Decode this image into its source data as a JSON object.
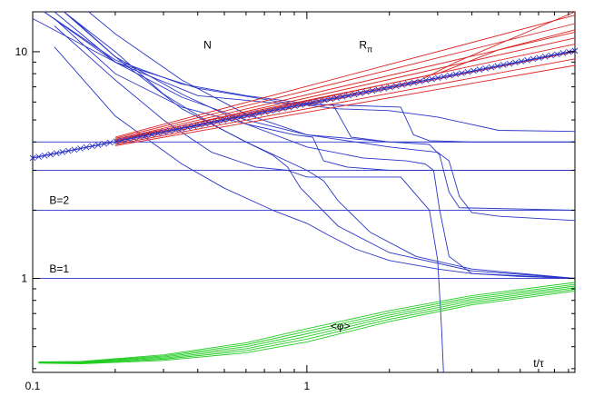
{
  "chart_data": {
    "type": "line",
    "xscale": "log",
    "yscale": "log",
    "xlim": [
      0.1,
      9.5
    ],
    "ylim": [
      0.385,
      15
    ],
    "xlabel": "t/τ",
    "ylabel": "",
    "x_ticks": [
      {
        "value": 0.1,
        "label": "0.1"
      },
      {
        "value": 1,
        "label": "1"
      }
    ],
    "y_ticks": [
      {
        "value": 1,
        "label": "1"
      },
      {
        "value": 10,
        "label": "10"
      }
    ],
    "annotations": [
      {
        "text": "N",
        "x": 0.42,
        "y": 10.3
      },
      {
        "text": "R",
        "sub": "π",
        "x": 1.55,
        "y": 10.3
      },
      {
        "text": "B=2",
        "x": 0.115,
        "y": 2.13
      },
      {
        "text": "B=1",
        "x": 0.115,
        "y": 1.06
      },
      {
        "text": "<φ>",
        "x": 1.22,
        "y": 0.595
      }
    ],
    "reference_lines": [
      {
        "y": 1,
        "label": "B=1"
      },
      {
        "y": 2,
        "label": "B=2"
      },
      {
        "y": 3,
        "label": ""
      },
      {
        "y": 4,
        "label": ""
      }
    ],
    "series": [
      {
        "group": "N",
        "color": "#2a35c8",
        "x": [
          0.1,
          0.2,
          0.4,
          0.8,
          1.3,
          2,
          3,
          5,
          9.5
        ],
        "y": [
          14,
          9,
          6.9,
          6,
          5.6,
          5.5,
          5.15,
          4.5,
          4.45
        ]
      },
      {
        "group": "N",
        "color": "#2a35c8",
        "x": [
          0.11,
          0.2,
          0.35,
          0.6,
          1.0,
          1.25,
          1.45,
          2.0,
          3.0,
          9.5
        ],
        "y": [
          15,
          9.2,
          7.2,
          6.4,
          5.9,
          5.8,
          4.2,
          4.0,
          4.0,
          4.0
        ]
      },
      {
        "group": "N",
        "color": "#2a35c8",
        "x": [
          0.11,
          0.2,
          0.4,
          0.8,
          1.4,
          2.2,
          2.45,
          2.8,
          4,
          9.5
        ],
        "y": [
          15,
          9,
          6.4,
          5.9,
          5.8,
          5.7,
          4.3,
          4.05,
          4.0,
          4.0
        ]
      },
      {
        "group": "N",
        "color": "#2a35c8",
        "x": [
          0.12,
          0.2,
          0.35,
          0.6,
          0.9,
          1.05,
          1.15,
          1.4,
          2,
          9.5
        ],
        "y": [
          14,
          8,
          5.7,
          4.8,
          4.3,
          4.2,
          3.3,
          3.1,
          3.0,
          3.0
        ]
      },
      {
        "group": "N",
        "color": "#2a35c8",
        "x": [
          0.12,
          0.2,
          0.35,
          0.6,
          1.0,
          2.0,
          2.8,
          3.05,
          3.3,
          3.6,
          9.5
        ],
        "y": [
          15,
          9,
          6.3,
          5.0,
          4.3,
          4.0,
          3.9,
          3.5,
          2.4,
          2.05,
          2.0
        ]
      },
      {
        "group": "N",
        "color": "#2a35c8",
        "x": [
          0.13,
          0.2,
          0.35,
          0.6,
          1.0,
          1.6,
          2.3,
          2.7,
          2.9,
          3.05,
          3.3,
          4,
          9.5
        ],
        "y": [
          15,
          9.5,
          6.5,
          4.8,
          3.8,
          3.4,
          3.3,
          3.2,
          3.0,
          2.0,
          1.25,
          1.05,
          1.0
        ]
      },
      {
        "group": "N",
        "color": "#2a35c8",
        "x": [
          0.13,
          0.2,
          0.3,
          0.45,
          0.6,
          0.75,
          0.85,
          0.95,
          1.3,
          2.0,
          4,
          9.5
        ],
        "y": [
          15,
          10,
          6.5,
          4.8,
          4.0,
          3.5,
          3.1,
          2.5,
          1.7,
          1.3,
          1.08,
          1.0
        ]
      },
      {
        "group": "N",
        "color": "#2a35c8",
        "x": [
          0.14,
          0.2,
          0.35,
          0.6,
          1.0,
          1.15,
          1.3,
          1.7,
          2.5,
          4,
          9.5
        ],
        "y": [
          14,
          9.5,
          5.6,
          4.0,
          3.0,
          2.7,
          2.2,
          1.6,
          1.25,
          1.1,
          1.0
        ]
      },
      {
        "group": "N",
        "color": "#2a35c8",
        "x": [
          0.12,
          0.2,
          0.35,
          0.5,
          0.75,
          1.0,
          1.2,
          1.5,
          2.0,
          3.0,
          4.0,
          6.0,
          9.5
        ],
        "y": [
          10.5,
          5.2,
          3.2,
          2.5,
          2.0,
          1.75,
          1.55,
          1.35,
          1.2,
          1.1,
          1.05,
          1.02,
          1.0
        ]
      },
      {
        "group": "N",
        "color": "#2a35c8",
        "x": [
          0.12,
          0.2,
          0.3,
          0.45,
          0.65,
          0.85,
          1.0,
          1.5,
          2.2,
          2.8,
          3.0,
          3.1,
          3.15
        ],
        "y": [
          13,
          7.5,
          5.0,
          3.6,
          3.1,
          3.0,
          2.8,
          2.8,
          2.8,
          2.0,
          1.2,
          0.6,
          0.385
        ]
      },
      {
        "group": "N",
        "color": "#2a35c8",
        "x": [
          0.16,
          0.2,
          0.35,
          0.6,
          1.0,
          2.0,
          3.0,
          3.3,
          3.6,
          4.0,
          5.0,
          9.5
        ],
        "y": [
          15,
          12,
          7.5,
          5.3,
          4.3,
          3.8,
          3.6,
          3.3,
          2.3,
          1.95,
          1.88,
          1.8
        ]
      },
      {
        "group": "R",
        "color": "#dd2222",
        "x": [
          0.2,
          9.5
        ],
        "y": [
          4.2,
          14.5
        ]
      },
      {
        "group": "R",
        "color": "#dd2222",
        "x": [
          0.2,
          9.5
        ],
        "y": [
          4.15,
          13.3
        ]
      },
      {
        "group": "R",
        "color": "#dd2222",
        "x": [
          0.2,
          9.5
        ],
        "y": [
          4.1,
          12.2
        ]
      },
      {
        "group": "R",
        "color": "#dd2222",
        "x": [
          0.2,
          9.5
        ],
        "y": [
          4.05,
          11.5
        ]
      },
      {
        "group": "R",
        "color": "#dd2222",
        "x": [
          0.2,
          9.5
        ],
        "y": [
          4.0,
          10.8
        ]
      },
      {
        "group": "R",
        "color": "#dd2222",
        "x": [
          0.2,
          9.5
        ],
        "y": [
          3.95,
          10.0
        ]
      },
      {
        "group": "R",
        "color": "#dd2222",
        "x": [
          0.2,
          9.5
        ],
        "y": [
          3.9,
          9.3
        ]
      },
      {
        "group": "R",
        "color": "#dd2222",
        "x": [
          0.2,
          9.5
        ],
        "y": [
          3.85,
          8.7
        ]
      },
      {
        "group": "R",
        "color": "#dd2222",
        "x": [
          0.2,
          2.6,
          3.5,
          9.5
        ],
        "y": [
          4.05,
          7.5,
          9.0,
          15.0
        ]
      },
      {
        "group": "R",
        "color": "#dd2222",
        "x": [
          0.2,
          3.0,
          5.0,
          9.5
        ],
        "y": [
          4.1,
          8.0,
          10.2,
          12.5
        ]
      },
      {
        "group": "phi",
        "color": "#22cc22",
        "x": [
          0.105,
          0.15,
          0.3,
          0.6,
          1.0,
          2.0,
          4.0,
          9.5
        ],
        "y": [
          0.428,
          0.43,
          0.46,
          0.52,
          0.6,
          0.72,
          0.84,
          0.96
        ]
      },
      {
        "group": "phi",
        "color": "#22cc22",
        "x": [
          0.105,
          0.15,
          0.3,
          0.6,
          1.0,
          2.0,
          4.0,
          9.5
        ],
        "y": [
          0.427,
          0.428,
          0.455,
          0.51,
          0.585,
          0.705,
          0.825,
          0.94
        ]
      },
      {
        "group": "phi",
        "color": "#22cc22",
        "x": [
          0.105,
          0.15,
          0.3,
          0.6,
          1.0,
          2.0,
          4.0,
          9.5
        ],
        "y": [
          0.426,
          0.426,
          0.45,
          0.5,
          0.57,
          0.69,
          0.81,
          0.925
        ]
      },
      {
        "group": "phi",
        "color": "#22cc22",
        "x": [
          0.105,
          0.15,
          0.3,
          0.6,
          1.0,
          2.0,
          4.0,
          9.5
        ],
        "y": [
          0.425,
          0.424,
          0.445,
          0.49,
          0.555,
          0.675,
          0.795,
          0.91
        ]
      },
      {
        "group": "phi",
        "color": "#22cc22",
        "x": [
          0.105,
          0.15,
          0.3,
          0.6,
          1.0,
          2.0,
          4.0,
          9.5
        ],
        "y": [
          0.424,
          0.422,
          0.44,
          0.48,
          0.54,
          0.66,
          0.78,
          0.895
        ]
      },
      {
        "group": "phi",
        "color": "#22cc22",
        "x": [
          0.105,
          0.15,
          0.3,
          0.6,
          1.0,
          2.0,
          4.0,
          9.5
        ],
        "y": [
          0.423,
          0.42,
          0.435,
          0.47,
          0.525,
          0.645,
          0.765,
          0.88
        ]
      }
    ],
    "marker_series": {
      "color": "#2a35c8",
      "marker": "x",
      "x_start": 0.1,
      "x_end": 9.5,
      "y_start": 3.4,
      "y_end": 10.1,
      "count": 92
    },
    "grid": false,
    "legend": "none"
  }
}
